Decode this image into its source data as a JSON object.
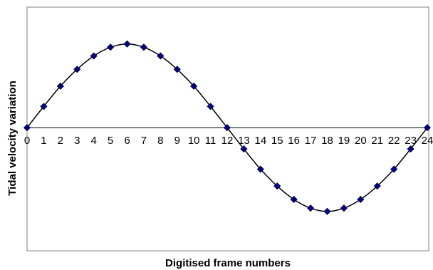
{
  "chart_data": {
    "type": "line",
    "title": "",
    "xlabel": "Digitised frame numbers",
    "ylabel": "Tidal velocity variation",
    "x": [
      0,
      1,
      2,
      3,
      4,
      5,
      6,
      7,
      8,
      9,
      10,
      11,
      12,
      13,
      14,
      15,
      16,
      17,
      18,
      19,
      20,
      21,
      22,
      23,
      24
    ],
    "tick_labels": [
      "0",
      "1",
      "2",
      "3",
      "4",
      "5",
      "6",
      "7",
      "8",
      "9",
      "10",
      "11",
      "12",
      "13",
      "14",
      "15",
      "16",
      "17",
      "18",
      "19",
      "20",
      "21",
      "22",
      "23",
      "24"
    ],
    "series": [
      {
        "values": [
          0,
          0.254,
          0.496,
          0.697,
          0.857,
          0.961,
          1.0,
          0.961,
          0.857,
          0.697,
          0.496,
          0.254,
          0,
          -0.254,
          -0.496,
          -0.697,
          -0.857,
          -0.961,
          -1.0,
          -0.961,
          -0.857,
          -0.697,
          -0.496,
          -0.254,
          0
        ],
        "color": "#000080"
      }
    ],
    "xlim": [
      0,
      24
    ],
    "ylim": [
      -1.47,
      1.44
    ],
    "grid": false,
    "legend": "none",
    "colors": {
      "marker": "#000080",
      "line": "#000000",
      "frame": "#808080"
    }
  }
}
